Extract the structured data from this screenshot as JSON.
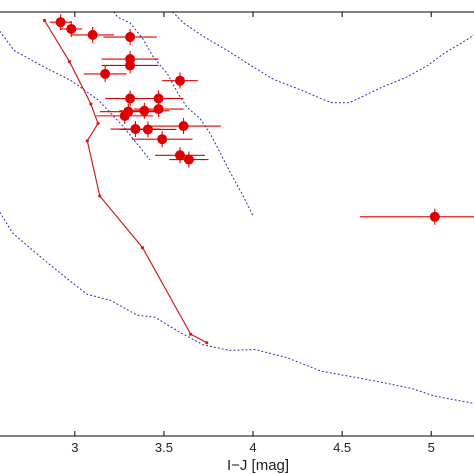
{
  "chart_data": {
    "type": "scatter",
    "title": "",
    "xlabel": "I−J [mag]",
    "ylabel": "",
    "xlim": [
      2.58,
      5.24
    ],
    "ylim": [
      0,
      100
    ],
    "y_inverted": true,
    "grid": false,
    "legend": "none",
    "x_ticks": [
      3,
      3.5,
      4,
      4.5,
      5
    ],
    "x_tick_labels": [
      "3",
      "3.5",
      "4",
      "4.5",
      "5"
    ],
    "colors": {
      "data": "#dd0000",
      "model_line": "#cc2020",
      "contours": "#3a3aa8",
      "axes": "#000000"
    },
    "observations": [
      {
        "x": 2.92,
        "y": 2.4,
        "xerr": 0.06
      },
      {
        "x": 2.98,
        "y": 4.0,
        "xerr": 0.06
      },
      {
        "x": 3.1,
        "y": 5.4,
        "xerr": 0.12
      },
      {
        "x": 3.31,
        "y": 5.9,
        "xerr": 0.15
      },
      {
        "x": 3.31,
        "y": 11.1,
        "xerr": 0.16
      },
      {
        "x": 3.31,
        "y": 12.6,
        "xerr": 0.16
      },
      {
        "x": 3.17,
        "y": 14.6,
        "xerr": 0.12
      },
      {
        "x": 3.59,
        "y": 16.2,
        "xerr": 0.1
      },
      {
        "x": 3.31,
        "y": 20.4,
        "xerr": 0.14
      },
      {
        "x": 3.47,
        "y": 20.4,
        "xerr": 0.14
      },
      {
        "x": 3.39,
        "y": 23.3,
        "xerr": 0.14
      },
      {
        "x": 3.47,
        "y": 22.9,
        "xerr": 0.14
      },
      {
        "x": 3.3,
        "y": 23.5,
        "xerr": 0.16
      },
      {
        "x": 3.28,
        "y": 24.5,
        "xerr": 0.16
      },
      {
        "x": 3.34,
        "y": 27.6,
        "xerr": 0.14
      },
      {
        "x": 3.61,
        "y": 26.9,
        "xerr": 0.21
      },
      {
        "x": 3.41,
        "y": 27.7,
        "xerr": 0.16
      },
      {
        "x": 3.49,
        "y": 30.0,
        "xerr": 0.17
      },
      {
        "x": 3.59,
        "y": 33.8,
        "xerr": 0.14
      },
      {
        "x": 3.64,
        "y": 34.8,
        "xerr": 0.11
      },
      {
        "x": 5.02,
        "y": 48.3,
        "xerr": 0.42
      }
    ],
    "model_track": {
      "x": [
        2.83,
        2.97,
        3.09,
        3.13,
        3.07,
        3.14,
        3.38,
        3.65,
        3.74
      ],
      "y": [
        2.0,
        11.7,
        21.7,
        26.3,
        30.4,
        43.4,
        55.6,
        76.0,
        78.0
      ]
    },
    "contours": [
      {
        "x": [
          2.58,
          2.66,
          2.82,
          2.98,
          3.13,
          3.27,
          3.42
        ],
        "y": [
          4.6,
          9.1,
          12.8,
          16.2,
          20.7,
          26.9,
          34.8
        ]
      },
      {
        "x": [
          2.58,
          2.65,
          2.78,
          2.93,
          3.07,
          3.2,
          3.35,
          3.45,
          3.58,
          3.72,
          3.87,
          4.01,
          4.19,
          4.38,
          4.54,
          4.72,
          4.89,
          5.02,
          5.24
        ],
        "y": [
          47.3,
          52.1,
          56.8,
          62.0,
          66.6,
          68.0,
          71.5,
          72.0,
          75.3,
          78.5,
          79.8,
          79.6,
          81.5,
          84.7,
          85.9,
          87.3,
          88.8,
          90.6,
          92.3
        ]
      },
      {
        "x": [
          3.55,
          3.61,
          3.72,
          3.86,
          3.98,
          4.12,
          4.27,
          4.38,
          4.44,
          4.54,
          4.62,
          4.72,
          4.86,
          4.98,
          5.07,
          5.2,
          5.24
        ],
        "y": [
          0.0,
          2.6,
          5.7,
          9.2,
          12.4,
          16.0,
          18.4,
          20.4,
          21.4,
          21.4,
          19.8,
          17.8,
          15.4,
          12.6,
          9.8,
          6.5,
          5.4
        ]
      },
      {
        "x": [
          3.22,
          3.24,
          3.31,
          3.38,
          3.44,
          3.52,
          3.58,
          3.63,
          3.7,
          3.76,
          3.82,
          3.88,
          3.94,
          4.0
        ],
        "y": [
          0.0,
          1.2,
          2.6,
          6.2,
          10.6,
          14.6,
          19.3,
          22.5,
          25.0,
          28.7,
          33.6,
          38.5,
          43.0,
          48.1
        ]
      }
    ]
  }
}
